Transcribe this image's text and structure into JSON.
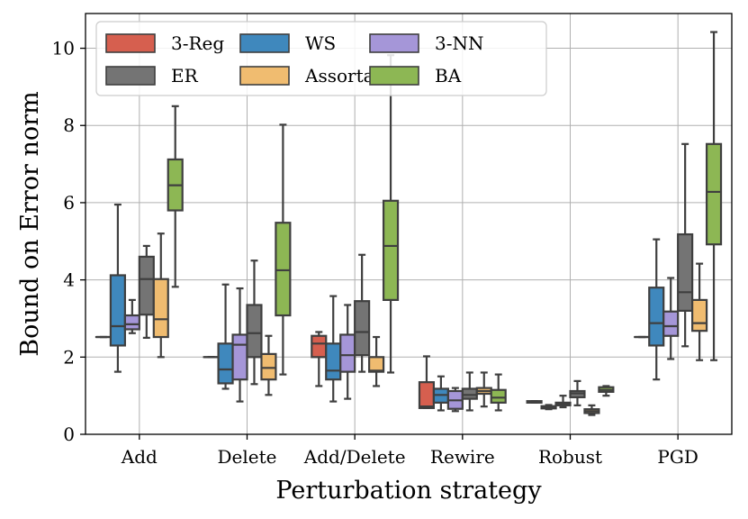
{
  "chart_data": {
    "type": "box",
    "xlabel": "Perturbation strategy",
    "ylabel": "Bound on Error norm",
    "ylim": [
      0,
      10.9
    ],
    "yticks": [
      0,
      2,
      4,
      6,
      8,
      10
    ],
    "grid": true,
    "legend_position": "top-left",
    "categories": [
      "Add",
      "Delete",
      "Add/Delete",
      "Rewire",
      "Robust",
      "PGD"
    ],
    "series": [
      {
        "name": "3-Reg",
        "color": "#d65f4f",
        "boxes": [
          {
            "min": 2.52,
            "q1": 2.52,
            "median": 2.52,
            "q3": 2.52,
            "max": 2.52
          },
          {
            "min": 2.0,
            "q1": 2.0,
            "median": 2.0,
            "q3": 2.0,
            "max": 2.0
          },
          {
            "min": 1.25,
            "q1": 2.0,
            "median": 2.35,
            "q3": 2.55,
            "max": 2.65
          },
          {
            "min": 0.68,
            "q1": 0.68,
            "median": 0.72,
            "q3": 1.35,
            "max": 2.02
          },
          {
            "min": 0.82,
            "q1": 0.82,
            "median": 0.84,
            "q3": 0.86,
            "max": 0.86
          },
          {
            "min": 2.52,
            "q1": 2.52,
            "median": 2.52,
            "q3": 2.52,
            "max": 2.52
          }
        ]
      },
      {
        "name": "WS",
        "color": "#3f88bd",
        "boxes": [
          {
            "min": 1.62,
            "q1": 2.3,
            "median": 2.8,
            "q3": 4.12,
            "max": 5.95
          },
          {
            "min": 1.18,
            "q1": 1.32,
            "median": 1.68,
            "q3": 2.35,
            "max": 3.88
          },
          {
            "min": 0.85,
            "q1": 1.42,
            "median": 1.65,
            "q3": 2.35,
            "max": 3.58
          },
          {
            "min": 0.62,
            "q1": 0.82,
            "median": 1.02,
            "q3": 1.18,
            "max": 1.5
          },
          {
            "min": 0.65,
            "q1": 0.67,
            "median": 0.7,
            "q3": 0.73,
            "max": 0.76
          },
          {
            "min": 1.42,
            "q1": 2.3,
            "median": 2.88,
            "q3": 3.8,
            "max": 5.05
          }
        ]
      },
      {
        "name": "3-NN",
        "color": "#a596d8",
        "boxes": [
          {
            "min": 2.62,
            "q1": 2.72,
            "median": 2.85,
            "q3": 3.08,
            "max": 3.48
          },
          {
            "min": 0.85,
            "q1": 1.42,
            "median": 2.32,
            "q3": 2.58,
            "max": 3.78
          },
          {
            "min": 0.92,
            "q1": 1.62,
            "median": 2.05,
            "q3": 2.58,
            "max": 3.35
          },
          {
            "min": 0.6,
            "q1": 0.66,
            "median": 0.88,
            "q3": 1.12,
            "max": 1.2
          },
          {
            "min": 0.7,
            "q1": 0.75,
            "median": 0.78,
            "q3": 0.82,
            "max": 1.0
          },
          {
            "min": 1.95,
            "q1": 2.55,
            "median": 2.8,
            "q3": 3.18,
            "max": 4.05
          }
        ]
      },
      {
        "name": "ER",
        "color": "#747474",
        "boxes": [
          {
            "min": 2.5,
            "q1": 3.1,
            "median": 4.02,
            "q3": 4.6,
            "max": 4.88
          },
          {
            "min": 1.3,
            "q1": 2.0,
            "median": 2.62,
            "q3": 3.35,
            "max": 4.5
          },
          {
            "min": 1.62,
            "q1": 2.05,
            "median": 2.65,
            "q3": 3.45,
            "max": 4.65
          },
          {
            "min": 0.62,
            "q1": 0.92,
            "median": 1.02,
            "q3": 1.18,
            "max": 1.6
          },
          {
            "min": 0.75,
            "q1": 0.96,
            "median": 1.06,
            "q3": 1.12,
            "max": 1.38
          },
          {
            "min": 2.28,
            "q1": 3.2,
            "median": 3.68,
            "q3": 5.18,
            "max": 7.52
          }
        ]
      },
      {
        "name": "Assortative",
        "color": "#f0bc70",
        "boxes": [
          {
            "min": 2.0,
            "q1": 2.52,
            "median": 2.98,
            "q3": 4.02,
            "max": 5.2
          },
          {
            "min": 1.02,
            "q1": 1.42,
            "median": 1.72,
            "q3": 2.08,
            "max": 2.55
          },
          {
            "min": 1.25,
            "q1": 1.62,
            "median": 1.65,
            "q3": 2.0,
            "max": 2.52
          },
          {
            "min": 0.72,
            "q1": 1.05,
            "median": 1.12,
            "q3": 1.2,
            "max": 1.6
          },
          {
            "min": 0.5,
            "q1": 0.55,
            "median": 0.6,
            "q3": 0.65,
            "max": 0.75
          },
          {
            "min": 1.92,
            "q1": 2.68,
            "median": 2.88,
            "q3": 3.48,
            "max": 4.42
          }
        ]
      },
      {
        "name": "BA",
        "color": "#8db754",
        "boxes": [
          {
            "min": 3.82,
            "q1": 5.8,
            "median": 6.45,
            "q3": 7.12,
            "max": 8.5
          },
          {
            "min": 1.55,
            "q1": 3.08,
            "median": 4.25,
            "q3": 5.48,
            "max": 8.02
          },
          {
            "min": 1.6,
            "q1": 3.48,
            "median": 4.88,
            "q3": 6.05,
            "max": 9.82
          },
          {
            "min": 0.62,
            "q1": 0.82,
            "median": 0.95,
            "q3": 1.15,
            "max": 1.55
          },
          {
            "min": 1.0,
            "q1": 1.1,
            "median": 1.15,
            "q3": 1.22,
            "max": 1.25
          },
          {
            "min": 1.92,
            "q1": 4.92,
            "median": 6.28,
            "q3": 7.52,
            "max": 10.42
          }
        ]
      }
    ]
  }
}
